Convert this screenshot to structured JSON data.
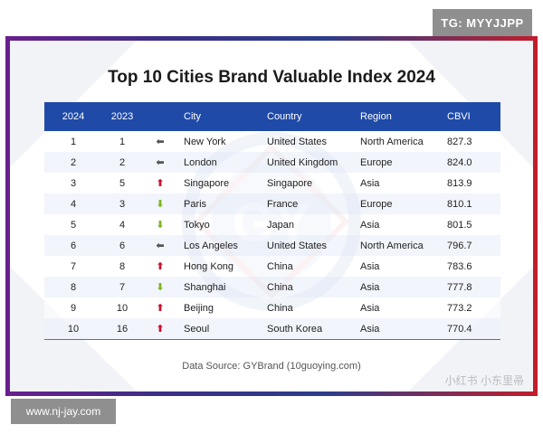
{
  "badges": {
    "tg": "TG: MYYJJPP",
    "url": "www.nj-jay.com",
    "watermark": "小红书 小东里帚"
  },
  "logo_text": "GY",
  "colors": {
    "header_bg": "#1f4aa8",
    "up_arrow": "#c8102e",
    "down_arrow": "#7ab51d",
    "same_arrow": "#555555"
  },
  "chart_data": {
    "type": "table",
    "title": "Top 10 Cities Brand Valuable Index 2024",
    "columns": [
      "2024",
      "2023",
      "",
      "City",
      "Country",
      "Region",
      "CBVI"
    ],
    "rows": [
      {
        "rank_2024": "1",
        "rank_2023": "1",
        "trend": "same",
        "city": "New York",
        "country": "United States",
        "region": "North America",
        "cbvi": "827.3"
      },
      {
        "rank_2024": "2",
        "rank_2023": "2",
        "trend": "same",
        "city": "London",
        "country": "United Kingdom",
        "region": "Europe",
        "cbvi": "824.0"
      },
      {
        "rank_2024": "3",
        "rank_2023": "5",
        "trend": "up",
        "city": "Singapore",
        "country": "Singapore",
        "region": "Asia",
        "cbvi": "813.9"
      },
      {
        "rank_2024": "4",
        "rank_2023": "3",
        "trend": "down",
        "city": "Paris",
        "country": "France",
        "region": "Europe",
        "cbvi": "810.1"
      },
      {
        "rank_2024": "5",
        "rank_2023": "4",
        "trend": "down",
        "city": "Tokyo",
        "country": "Japan",
        "region": "Asia",
        "cbvi": "801.5"
      },
      {
        "rank_2024": "6",
        "rank_2023": "6",
        "trend": "same",
        "city": "Los Angeles",
        "country": "United States",
        "region": "North America",
        "cbvi": "796.7"
      },
      {
        "rank_2024": "7",
        "rank_2023": "8",
        "trend": "up",
        "city": "Hong Kong",
        "country": "China",
        "region": "Asia",
        "cbvi": "783.6"
      },
      {
        "rank_2024": "8",
        "rank_2023": "7",
        "trend": "down",
        "city": "Shanghai",
        "country": "China",
        "region": "Asia",
        "cbvi": "777.8"
      },
      {
        "rank_2024": "9",
        "rank_2023": "10",
        "trend": "up",
        "city": "Beijing",
        "country": "China",
        "region": "Asia",
        "cbvi": "773.2"
      },
      {
        "rank_2024": "10",
        "rank_2023": "16",
        "trend": "up",
        "city": "Seoul",
        "country": "South Korea",
        "region": "Asia",
        "cbvi": "770.4"
      }
    ],
    "source": "Data Source: GYBrand (10guoying.com)"
  }
}
